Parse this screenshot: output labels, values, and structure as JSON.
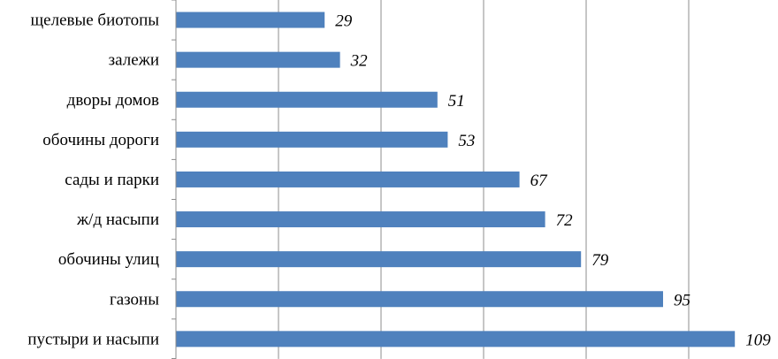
{
  "chart_data": {
    "type": "bar",
    "orientation": "horizontal",
    "categories": [
      "щелевые биотопы",
      "залежи",
      "дворы домов",
      "обочины дороги",
      "сады и парки",
      "ж/д насыпи",
      "обочины улиц",
      "газоны",
      "пустыри и насыпи"
    ],
    "values": [
      29,
      32,
      51,
      53,
      67,
      72,
      79,
      95,
      109
    ],
    "title": "",
    "xlabel": "",
    "ylabel": "",
    "xlim": [
      0,
      120
    ],
    "grid_step": 20,
    "grid": true,
    "data_labels": true,
    "bar_color": "#4f81bd"
  }
}
